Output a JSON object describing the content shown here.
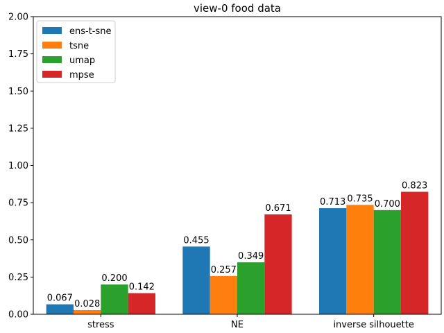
{
  "chart_data": {
    "type": "bar",
    "title": "view-0 food data",
    "xlabel": "",
    "ylabel": "",
    "categories": [
      "stress",
      "NE",
      "inverse silhouette"
    ],
    "ylim": [
      0,
      2.0
    ],
    "yticks": [
      "0.00",
      "0.25",
      "0.50",
      "0.75",
      "1.00",
      "1.25",
      "1.50",
      "1.75",
      "2.00"
    ],
    "grid": false,
    "legend_position": "top-left",
    "series": [
      {
        "name": "ens-t-sne",
        "color": "#1f77b4",
        "values": [
          0.067,
          0.455,
          0.713
        ],
        "labels": [
          "0.067",
          "0.455",
          "0.713"
        ]
      },
      {
        "name": "tsne",
        "color": "#ff7f0e",
        "values": [
          0.028,
          0.257,
          0.735
        ],
        "labels": [
          "0.028",
          "0.257",
          "0.735"
        ]
      },
      {
        "name": "umap",
        "color": "#2ca02c",
        "values": [
          0.2,
          0.349,
          0.7
        ],
        "labels": [
          "0.200",
          "0.349",
          "0.700"
        ]
      },
      {
        "name": "mpse",
        "color": "#d62728",
        "values": [
          0.142,
          0.671,
          0.823
        ],
        "labels": [
          "0.142",
          "0.671",
          "0.823"
        ]
      }
    ]
  }
}
